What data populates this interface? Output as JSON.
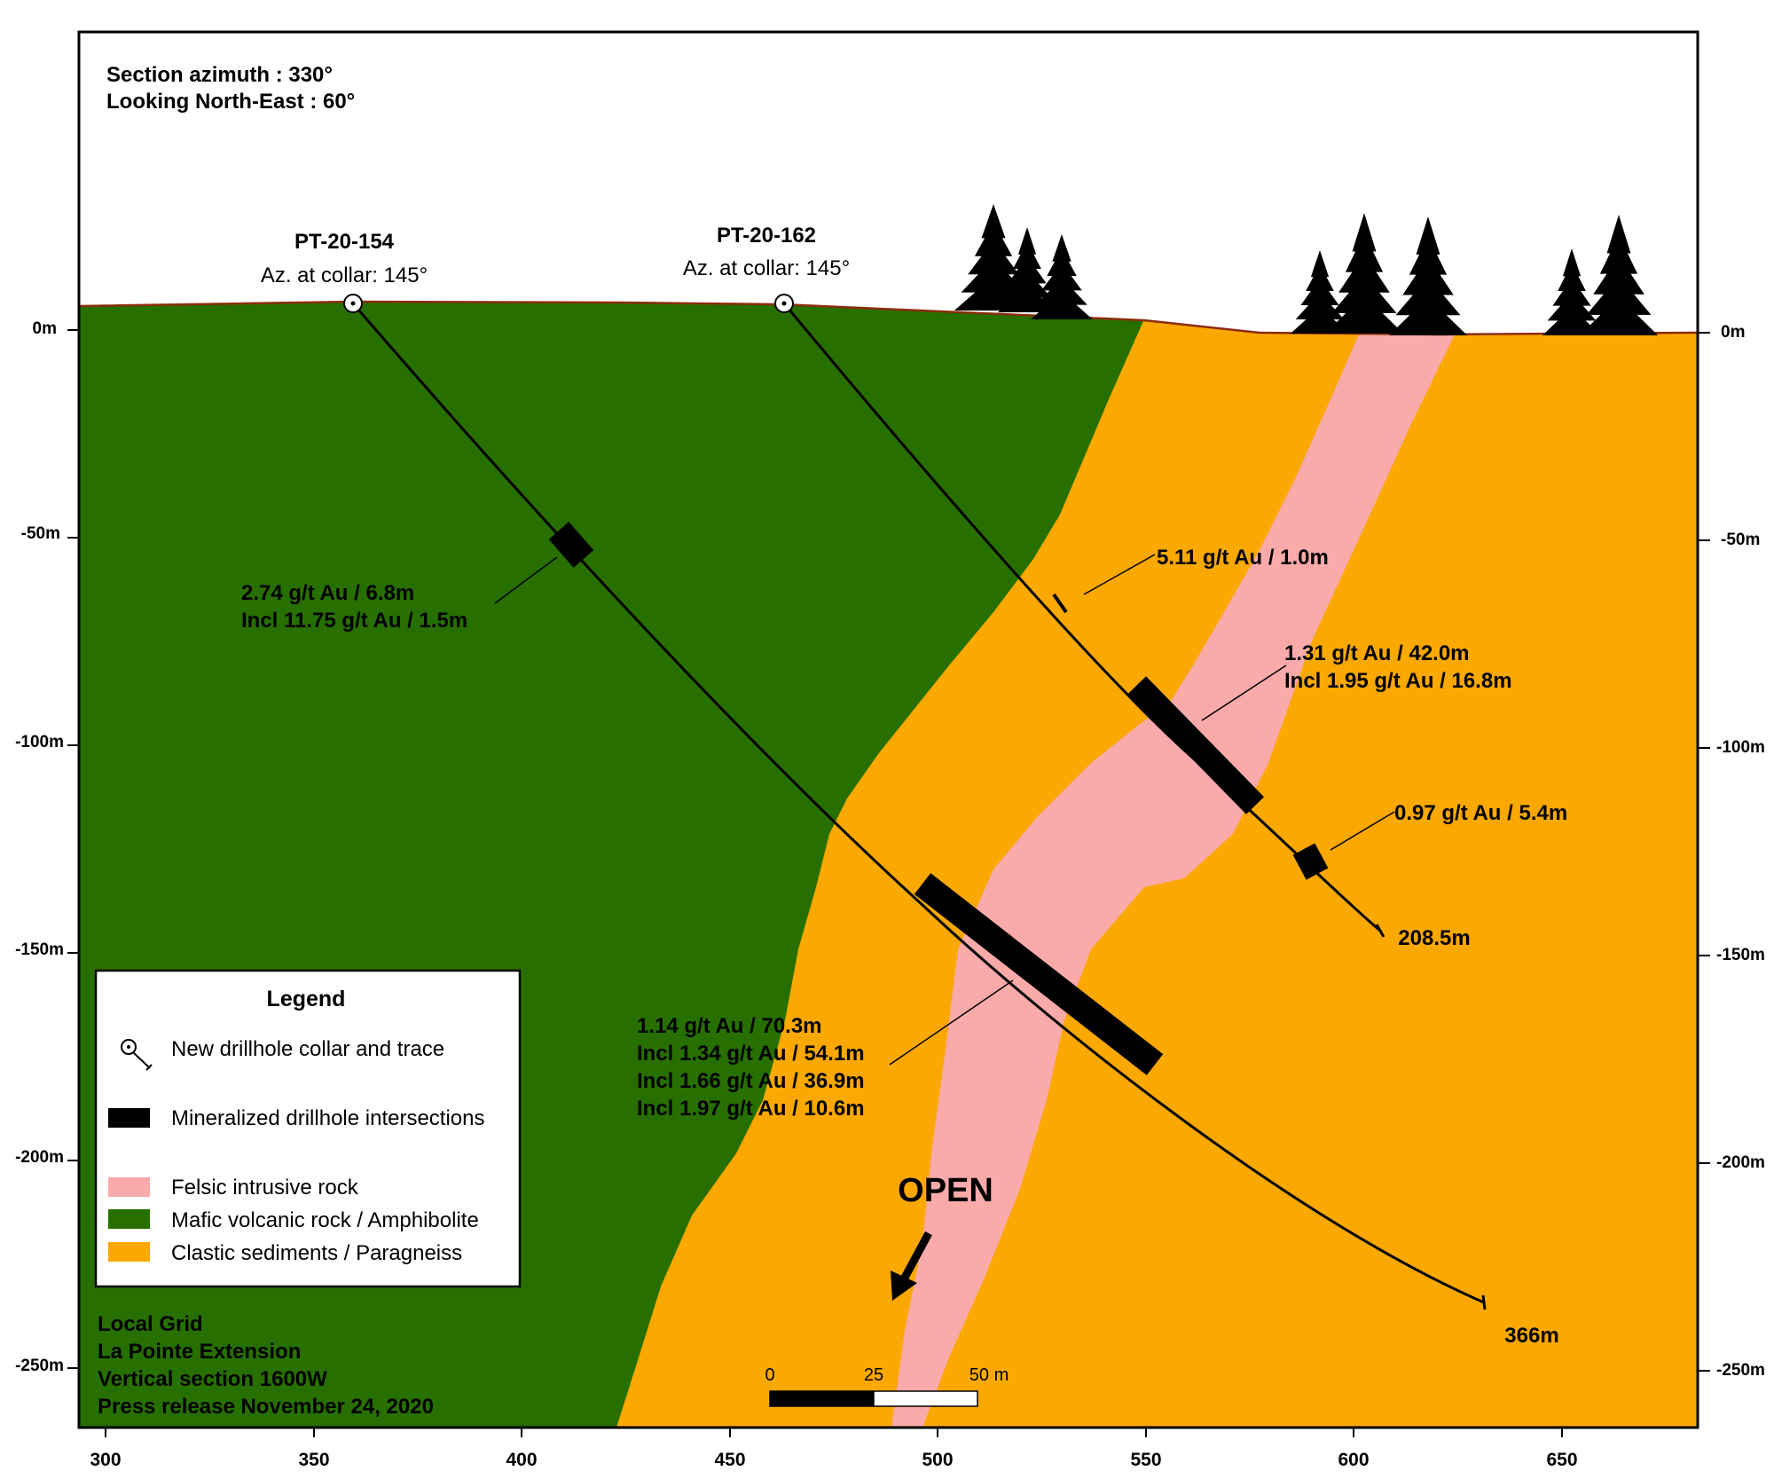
{
  "header": {
    "line1": "Section azimuth : 330°",
    "line2": "Looking North-East : 60°"
  },
  "drillholes": [
    {
      "name": "PT-20-154",
      "azimuth_label": "Az. at collar: 145°",
      "end_label": "366m"
    },
    {
      "name": "PT-20-162",
      "azimuth_label": "Az. at collar: 145°",
      "end_label": "208.5m"
    }
  ],
  "intersections": {
    "h154_upper": [
      "2.74 g/t Au / 6.8m",
      "Incl 11.75 g/t Au / 1.5m"
    ],
    "h154_main": [
      "1.14 g/t Au / 70.3m",
      "Incl 1.34 g/t Au / 54.1m",
      "Incl 1.66 g/t Au / 36.9m",
      "Incl 1.97 g/t Au / 10.6m"
    ],
    "h162_a": [
      "5.11 g/t Au / 1.0m"
    ],
    "h162_b": [
      "1.31 g/t Au / 42.0m",
      "Incl 1.95 g/t Au / 16.8m"
    ],
    "h162_c": [
      "0.97 g/t Au / 5.4m"
    ]
  },
  "open_label": "OPEN",
  "legend": {
    "title": "Legend",
    "items": [
      {
        "label": "New drillhole collar and trace",
        "symbol": "collar"
      },
      {
        "label": "Mineralized drillhole intersections",
        "symbol": "bar"
      },
      {
        "label": "Felsic intrusive rock",
        "color": "#f9aaa9"
      },
      {
        "label": "Mafic volcanic rock / Amphibolite",
        "color": "#277000"
      },
      {
        "label": "Clastic sediments / Paragneiss",
        "color": "#fba800"
      }
    ]
  },
  "footer": [
    "Local Grid",
    "La Pointe Extension",
    "Vertical section 1600W",
    "Press release November 24, 2020"
  ],
  "axis": {
    "x_ticks": [
      "300",
      "350",
      "400",
      "450",
      "500",
      "550",
      "600",
      "650"
    ],
    "y_ticks_left": [
      "0m",
      "-50m",
      "-100m",
      "-150m",
      "-200m",
      "-250m"
    ],
    "y_ticks_right": [
      "0m",
      "-50m",
      "-100m",
      "-150m",
      "-200m",
      "-250m"
    ]
  },
  "scale_bar": {
    "labels": [
      "0",
      "25",
      "50 m"
    ]
  },
  "colors": {
    "mafic": "#277000",
    "sediment": "#fba800",
    "felsic": "#f9aaa9",
    "surface": "#8b2c0c"
  }
}
